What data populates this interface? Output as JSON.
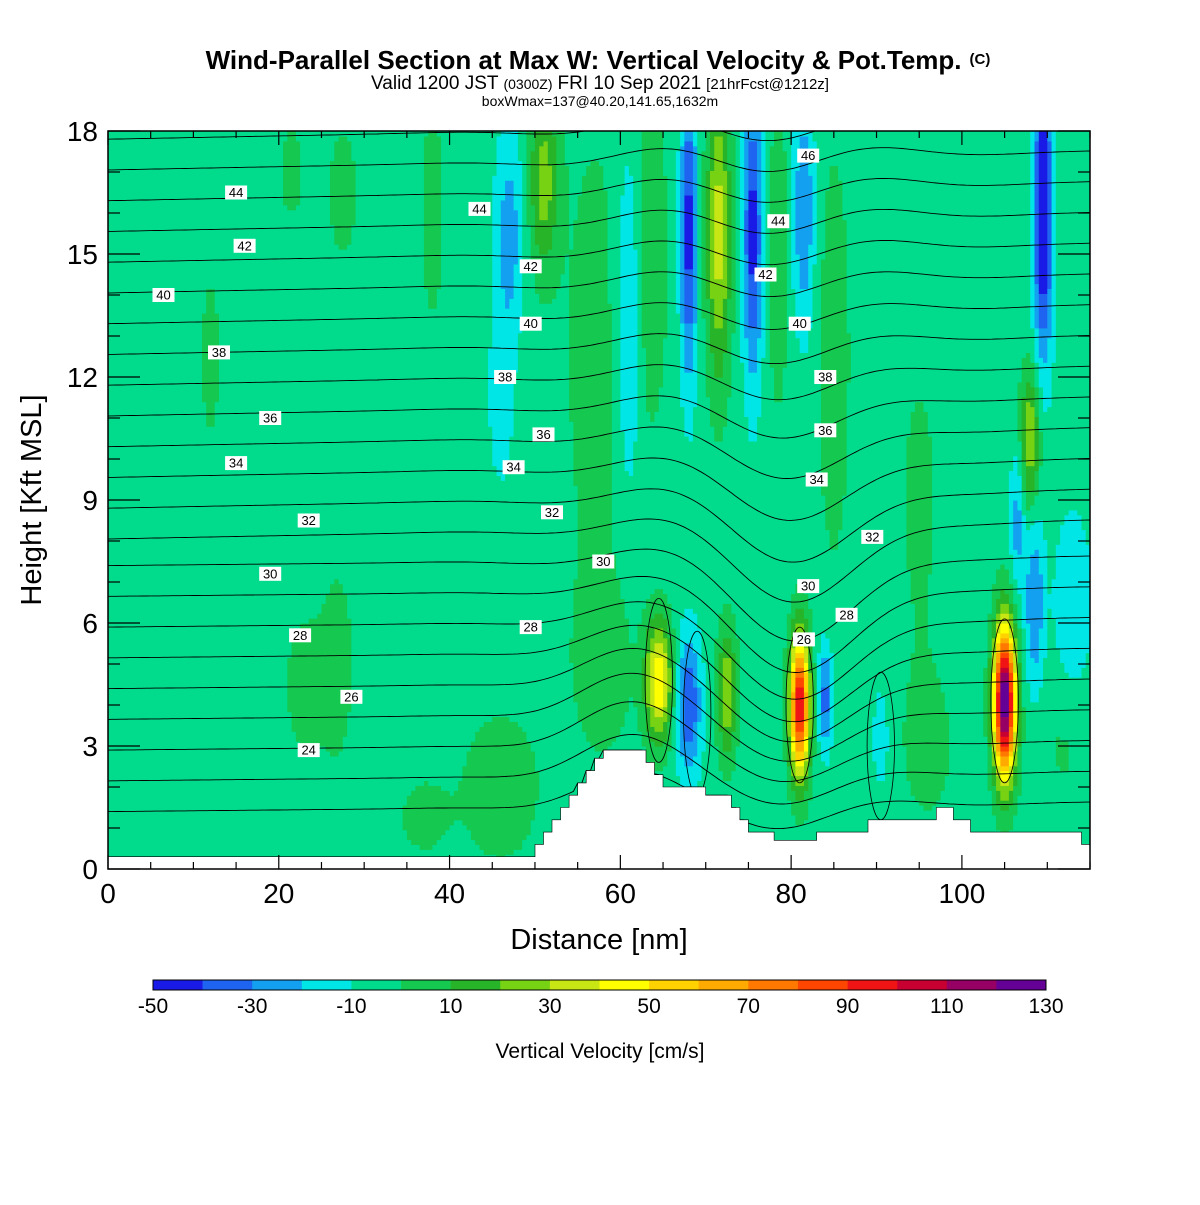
{
  "title": {
    "main": "Wind-Parallel Section at Max W: Vertical Velocity & Pot.Temp.",
    "main_tag": "(C)",
    "valid_a": "Valid 1200 JST",
    "valid_b": "(0300Z)",
    "valid_c": "FRI 10 Sep 2021",
    "valid_d": "[21hrFcst@1212z]",
    "box": "boxWmax=137@40.20,141.65,1632m"
  },
  "chart_data": {
    "type": "heatmap",
    "xlabel": "Distance [nm]",
    "ylabel": "Height [Kft MSL]",
    "xlim": [
      0,
      115
    ],
    "ylim": [
      0,
      18
    ],
    "x_ticks": [
      0,
      20,
      40,
      60,
      80,
      100
    ],
    "y_ticks": [
      0,
      3,
      6,
      9,
      12,
      15,
      18
    ],
    "colorbar": {
      "label": "Vertical Velocity [cm/s]",
      "range": [
        -50,
        130
      ],
      "step": 10,
      "tick_labels": [
        "-50",
        "-30",
        "-10",
        "10",
        "30",
        "50",
        "70",
        "90",
        "110",
        "130"
      ],
      "colors": [
        "#1a1ae6",
        "#1e64f0",
        "#14a0f0",
        "#00e6e6",
        "#00dc8c",
        "#14c850",
        "#28b428",
        "#78d214",
        "#c8e614",
        "#ffff00",
        "#ffd200",
        "#ffaa00",
        "#ff7800",
        "#ff4600",
        "#f01414",
        "#c80032",
        "#960064",
        "#640096"
      ]
    },
    "background_value": -5,
    "terrain_kft": [
      [
        0,
        0.3
      ],
      [
        50,
        0.3
      ],
      [
        50,
        0.6
      ],
      [
        51,
        0.6
      ],
      [
        51,
        0.9
      ],
      [
        52,
        0.9
      ],
      [
        52,
        1.2
      ],
      [
        53,
        1.2
      ],
      [
        53,
        1.5
      ],
      [
        54,
        1.5
      ],
      [
        54,
        1.8
      ],
      [
        55,
        1.8
      ],
      [
        55,
        2.1
      ],
      [
        56,
        2.1
      ],
      [
        56,
        2.4
      ],
      [
        57,
        2.4
      ],
      [
        57,
        2.7
      ],
      [
        58,
        2.7
      ],
      [
        58,
        2.9
      ],
      [
        63,
        2.9
      ],
      [
        63,
        2.6
      ],
      [
        64,
        2.6
      ],
      [
        64,
        2.3
      ],
      [
        65,
        2.3
      ],
      [
        65,
        2.0
      ],
      [
        70,
        2.0
      ],
      [
        70,
        1.8
      ],
      [
        73,
        1.8
      ],
      [
        73,
        1.5
      ],
      [
        74,
        1.5
      ],
      [
        74,
        1.2
      ],
      [
        75,
        1.2
      ],
      [
        75,
        0.9
      ],
      [
        78,
        0.9
      ],
      [
        78,
        0.7
      ],
      [
        83,
        0.7
      ],
      [
        83,
        0.9
      ],
      [
        89,
        0.9
      ],
      [
        89,
        1.2
      ],
      [
        97,
        1.2
      ],
      [
        97,
        1.5
      ],
      [
        99,
        1.5
      ],
      [
        99,
        1.2
      ],
      [
        101,
        1.2
      ],
      [
        101,
        0.9
      ],
      [
        114,
        0.9
      ],
      [
        114,
        0.6
      ],
      [
        115,
        0.6
      ]
    ],
    "w_features": [
      {
        "x": 81,
        "y": 4.0,
        "sx": 0.8,
        "sy": 1.2,
        "w": 105
      },
      {
        "x": 105,
        "y": 4.1,
        "sx": 0.9,
        "sy": 1.3,
        "w": 137
      },
      {
        "x": 64.5,
        "y": 4.6,
        "sx": 1.1,
        "sy": 1.0,
        "w": 55
      },
      {
        "x": 72.5,
        "y": 4.3,
        "sx": 0.8,
        "sy": 1.1,
        "w": 35
      },
      {
        "x": 68,
        "y": 4.0,
        "sx": 1.0,
        "sy": 1.2,
        "w": -35
      },
      {
        "x": 84,
        "y": 4.2,
        "sx": 0.6,
        "sy": 0.9,
        "w": -30
      },
      {
        "x": 90.5,
        "y": 3.2,
        "sx": 0.6,
        "sy": 0.8,
        "w": -15
      },
      {
        "x": 108.5,
        "y": 6.5,
        "sx": 0.8,
        "sy": 1.5,
        "w": -25
      },
      {
        "x": 68,
        "y": 15.5,
        "sx": 0.7,
        "sy": 2.5,
        "w": -40
      },
      {
        "x": 71.5,
        "y": 15.5,
        "sx": 1.0,
        "sy": 2.5,
        "w": 40
      },
      {
        "x": 75.5,
        "y": 15.5,
        "sx": 0.8,
        "sy": 2.5,
        "w": -40
      },
      {
        "x": 78.5,
        "y": 15.0,
        "sx": 0.8,
        "sy": 2.5,
        "w": 15
      },
      {
        "x": 81.5,
        "y": 16.0,
        "sx": 0.9,
        "sy": 2.0,
        "w": -25
      },
      {
        "x": 85,
        "y": 12.5,
        "sx": 1.5,
        "sy": 4.0,
        "w": 10
      },
      {
        "x": 109.5,
        "y": 16.0,
        "sx": 0.8,
        "sy": 2.5,
        "w": -50
      },
      {
        "x": 108,
        "y": 10.5,
        "sx": 0.8,
        "sy": 1.2,
        "w": 35
      },
      {
        "x": 106.5,
        "y": 8.5,
        "sx": 0.6,
        "sy": 1.2,
        "w": -20
      },
      {
        "x": 51,
        "y": 16.8,
        "sx": 1.2,
        "sy": 1.5,
        "w": 30
      },
      {
        "x": 47,
        "y": 15.5,
        "sx": 1.2,
        "sy": 1.8,
        "w": -20
      },
      {
        "x": 46,
        "y": 11.5,
        "sx": 1.0,
        "sy": 1.5,
        "w": -12
      },
      {
        "x": 57,
        "y": 12.5,
        "sx": 3.0,
        "sy": 5.0,
        "w": 8
      },
      {
        "x": 61,
        "y": 13.5,
        "sx": 1.0,
        "sy": 3.0,
        "w": -20
      },
      {
        "x": 63.5,
        "y": 15.0,
        "sx": 1.5,
        "sy": 3.0,
        "w": 12
      },
      {
        "x": 12,
        "y": 12.5,
        "sx": 1.0,
        "sy": 1.8,
        "w": 8
      },
      {
        "x": 23,
        "y": 4.5,
        "sx": 2.0,
        "sy": 1.5,
        "w": 8
      },
      {
        "x": 27,
        "y": 5.0,
        "sx": 1.5,
        "sy": 2.0,
        "w": 8
      },
      {
        "x": 21.5,
        "y": 17.0,
        "sx": 1.2,
        "sy": 1.0,
        "w": 8
      },
      {
        "x": 27.5,
        "y": 16.5,
        "sx": 1.5,
        "sy": 1.5,
        "w": 8
      },
      {
        "x": 38,
        "y": 16.0,
        "sx": 1.2,
        "sy": 2.5,
        "w": 8
      },
      {
        "x": 37,
        "y": 1.3,
        "sx": 2.5,
        "sy": 0.8,
        "w": 8
      },
      {
        "x": 46,
        "y": 2.0,
        "sx": 3.0,
        "sy": 1.2,
        "w": 14
      },
      {
        "x": 58,
        "y": 5.0,
        "sx": 2.5,
        "sy": 1.5,
        "w": 10
      },
      {
        "x": 96,
        "y": 3.0,
        "sx": 2.5,
        "sy": 1.5,
        "w": 8
      },
      {
        "x": 112,
        "y": 3.0,
        "sx": 2.5,
        "sy": 1.2,
        "w": 6
      },
      {
        "x": 113,
        "y": 6.5,
        "sx": 1.5,
        "sy": 1.5,
        "w": -15
      },
      {
        "x": 95,
        "y": 9.0,
        "sx": 2.0,
        "sy": 3.0,
        "w": 7
      }
    ],
    "theta_levels": [
      24,
      25,
      26,
      27,
      28,
      29,
      30,
      31,
      32,
      33,
      34,
      35,
      36,
      37,
      38,
      39,
      40,
      41,
      42,
      43,
      44,
      45,
      46
    ],
    "theta_labels": [
      {
        "text": "44",
        "x": 15,
        "y": 16.5
      },
      {
        "text": "42",
        "x": 16,
        "y": 15.2
      },
      {
        "text": "40",
        "x": 6.5,
        "y": 14.0
      },
      {
        "text": "38",
        "x": 13,
        "y": 12.6
      },
      {
        "text": "36",
        "x": 19,
        "y": 11.0
      },
      {
        "text": "34",
        "x": 15,
        "y": 9.9
      },
      {
        "text": "32",
        "x": 23.5,
        "y": 8.5
      },
      {
        "text": "30",
        "x": 19,
        "y": 7.2
      },
      {
        "text": "28",
        "x": 22.5,
        "y": 5.7
      },
      {
        "text": "26",
        "x": 28.5,
        "y": 4.2
      },
      {
        "text": "24",
        "x": 23.5,
        "y": 2.9
      },
      {
        "text": "44",
        "x": 43.5,
        "y": 16.1
      },
      {
        "text": "42",
        "x": 49.5,
        "y": 14.7
      },
      {
        "text": "40",
        "x": 49.5,
        "y": 13.3
      },
      {
        "text": "38",
        "x": 46.5,
        "y": 12.0
      },
      {
        "text": "36",
        "x": 51,
        "y": 10.6
      },
      {
        "text": "34",
        "x": 47.5,
        "y": 9.8
      },
      {
        "text": "32",
        "x": 52,
        "y": 8.7
      },
      {
        "text": "30",
        "x": 58,
        "y": 7.5
      },
      {
        "text": "28",
        "x": 49.5,
        "y": 5.9
      },
      {
        "text": "46",
        "x": 82,
        "y": 17.4
      },
      {
        "text": "44",
        "x": 78.5,
        "y": 15.8
      },
      {
        "text": "42",
        "x": 77,
        "y": 14.5
      },
      {
        "text": "40",
        "x": 81,
        "y": 13.3
      },
      {
        "text": "38",
        "x": 84,
        "y": 12.0
      },
      {
        "text": "36",
        "x": 84,
        "y": 10.7
      },
      {
        "text": "34",
        "x": 83,
        "y": 9.5
      },
      {
        "text": "32",
        "x": 89.5,
        "y": 8.1
      },
      {
        "text": "30",
        "x": 82,
        "y": 6.9
      },
      {
        "text": "28",
        "x": 86.5,
        "y": 6.2
      },
      {
        "text": "26",
        "x": 81.5,
        "y": 5.6
      }
    ]
  }
}
